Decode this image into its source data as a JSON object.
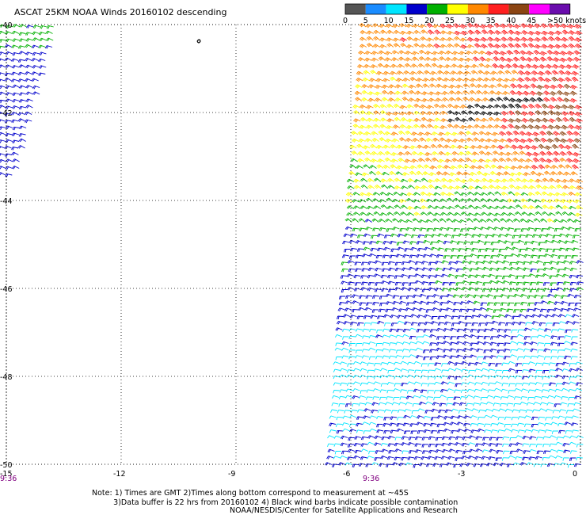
{
  "title": "ASCAT 25KM NOAA Winds 20160102 descending",
  "legend": {
    "labels": [
      "0",
      "5",
      "10",
      "15",
      "20",
      "25",
      "30",
      "35",
      "40",
      "45",
      ">50 knots"
    ],
    "colors": [
      "#555555",
      "#1a8cff",
      "#00e5ff",
      "#0000cc",
      "#00b000",
      "#ffff00",
      "#ff8800",
      "#ff2020",
      "#8b4513",
      "#ff00ff",
      "#6a0dad"
    ]
  },
  "axes": {
    "lat_labels": [
      "-40",
      "-42",
      "-44",
      "-46",
      "-48",
      "-50"
    ],
    "lon_labels": [
      "-15",
      "-12",
      "-9",
      "-6",
      "-3",
      "0"
    ],
    "time_labels": [
      "9:36",
      "9:36"
    ]
  },
  "note_lines": [
    "Note: 1) Times are GMT 2)Times along bottom correspond to measurement at ~45S",
    "         3)Data buffer is 22 hrs from 20160102 4) Black wind barbs indicate possible contamination"
  ],
  "credit": "NOAA/NESDIS/Center for Satellite Applications and Research",
  "chart_data": {
    "type": "map",
    "projection": "equirectangular",
    "lon_range": [
      -15,
      0
    ],
    "lat_range": [
      -50,
      -40
    ],
    "grid": true,
    "units": "knots",
    "wind_speed_bins": [
      0,
      5,
      10,
      15,
      20,
      25,
      30,
      35,
      40,
      45,
      50
    ],
    "samples": [
      {
        "lon": -1.5,
        "lat": -40.5,
        "speed_kt": 38
      },
      {
        "lon": -2.5,
        "lat": -41.5,
        "speed_kt": 32
      },
      {
        "lon": -1.0,
        "lat": -42.0,
        "speed_kt": 40
      },
      {
        "lon": -3.5,
        "lat": -43.0,
        "speed_kt": 31
      },
      {
        "lon": -4.0,
        "lat": -44.0,
        "speed_kt": 24
      },
      {
        "lon": -3.0,
        "lat": -44.5,
        "speed_kt": 22
      },
      {
        "lon": -4.5,
        "lat": -45.5,
        "speed_kt": 18
      },
      {
        "lon": -2.0,
        "lat": -46.0,
        "speed_kt": 22
      },
      {
        "lon": -3.0,
        "lat": -47.0,
        "speed_kt": 17
      },
      {
        "lon": -1.0,
        "lat": -47.5,
        "speed_kt": 14
      },
      {
        "lon": -5.0,
        "lat": -48.0,
        "speed_kt": 13
      },
      {
        "lon": -2.0,
        "lat": -48.5,
        "speed_kt": 13
      },
      {
        "lon": -3.5,
        "lat": -49.5,
        "speed_kt": 17
      },
      {
        "lon": -14.6,
        "lat": -40.2,
        "speed_kt": 21
      },
      {
        "lon": -14.5,
        "lat": -41.0,
        "speed_kt": 18
      },
      {
        "lon": -14.8,
        "lat": -42.5,
        "speed_kt": 17
      }
    ],
    "swaths": [
      {
        "name": "swath-west",
        "lon_east_edge_top": -13.6,
        "lon_east_edge_bottom": -14.7,
        "lat_top": -40,
        "lat_bottom": -43.5
      },
      {
        "name": "swath-east",
        "lon_west_edge_top": -5.6,
        "lon_west_edge_bottom": -6.5,
        "lat_top": -40,
        "lat_bottom": -50
      }
    ]
  }
}
